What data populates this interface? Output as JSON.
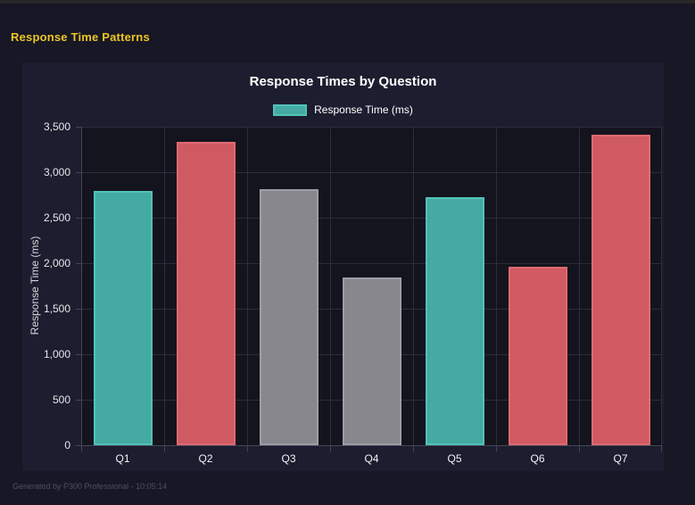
{
  "header": {
    "title": "Response Time Patterns"
  },
  "footer": {
    "text": "Generated by P300 Professional - 10:05:14"
  },
  "colors": {
    "page_background": "#171725",
    "panel_background": "#1d1d30",
    "plot_background": "#14141e",
    "accent_yellow": "#edc524",
    "gridline": "#2d2d3a",
    "axis_line": "#46465a"
  },
  "chart_data": {
    "type": "bar",
    "title": "Response Times by Question",
    "categories": [
      "Q1",
      "Q2",
      "Q3",
      "Q4",
      "Q5",
      "Q6",
      "Q7"
    ],
    "series": [
      {
        "name": "Response Time (ms)",
        "color": {
          "fill": "#45aaa1",
          "border": "#4fc3b9"
        },
        "values": [
          2790,
          3330,
          2810,
          1840,
          2730,
          1960,
          3410
        ]
      }
    ],
    "bar_colors": [
      {
        "fill": "#45aaa1",
        "border": "#4fc3b9"
      },
      {
        "fill": "#cf5a61",
        "border": "#e06a72"
      },
      {
        "fill": "#87878d",
        "border": "#9d9da4"
      },
      {
        "fill": "#87878d",
        "border": "#9d9da4"
      },
      {
        "fill": "#45aaa1",
        "border": "#4fc3b9"
      },
      {
        "fill": "#cf5a61",
        "border": "#e06a72"
      },
      {
        "fill": "#cf5a61",
        "border": "#e06a72"
      }
    ],
    "xlabel": "",
    "ylabel": "Response Time (ms)",
    "ylim": [
      0,
      3500
    ],
    "y_ticks": [
      "0",
      "500",
      "1,000",
      "1,500",
      "2,000",
      "2,500",
      "3,000",
      "3,500"
    ],
    "grid": true,
    "legend_position": "top"
  }
}
